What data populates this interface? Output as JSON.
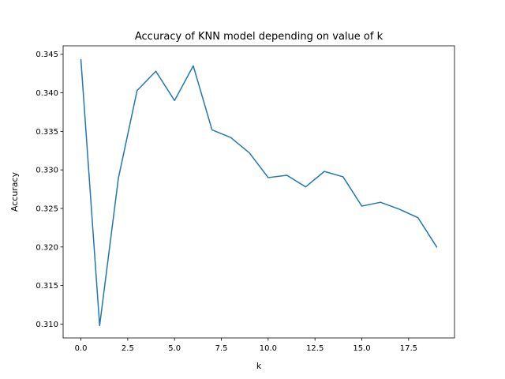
{
  "chart_data": {
    "type": "line",
    "title": "Accuracy of KNN model depending on value of k",
    "xlabel": "k",
    "ylabel": "Accuracy",
    "xlim": [
      -0.95,
      19.95
    ],
    "ylim": [
      0.3082,
      0.3461
    ],
    "x_ticks": [
      0.0,
      2.5,
      5.0,
      7.5,
      10.0,
      12.5,
      15.0,
      17.5
    ],
    "x_tick_labels": [
      "0.0",
      "2.5",
      "5.0",
      "7.5",
      "10.0",
      "12.5",
      "15.0",
      "17.5"
    ],
    "y_ticks": [
      0.31,
      0.315,
      0.32,
      0.325,
      0.33,
      0.335,
      0.34,
      0.345
    ],
    "y_tick_labels": [
      "0.310",
      "0.315",
      "0.320",
      "0.325",
      "0.330",
      "0.335",
      "0.340",
      "0.345"
    ],
    "grid": false,
    "series": [
      {
        "color": "#1f77b4",
        "x": [
          0,
          1,
          2,
          3,
          4,
          5,
          6,
          7,
          8,
          9,
          10,
          11,
          12,
          13,
          14,
          15,
          16,
          17,
          18,
          19
        ],
        "values": [
          0.3443,
          0.3098,
          0.3289,
          0.3403,
          0.3428,
          0.339,
          0.3435,
          0.3352,
          0.3342,
          0.3322,
          0.329,
          0.3293,
          0.3278,
          0.3298,
          0.3291,
          0.3253,
          0.3258,
          0.3249,
          0.3238,
          0.32
        ]
      }
    ]
  }
}
